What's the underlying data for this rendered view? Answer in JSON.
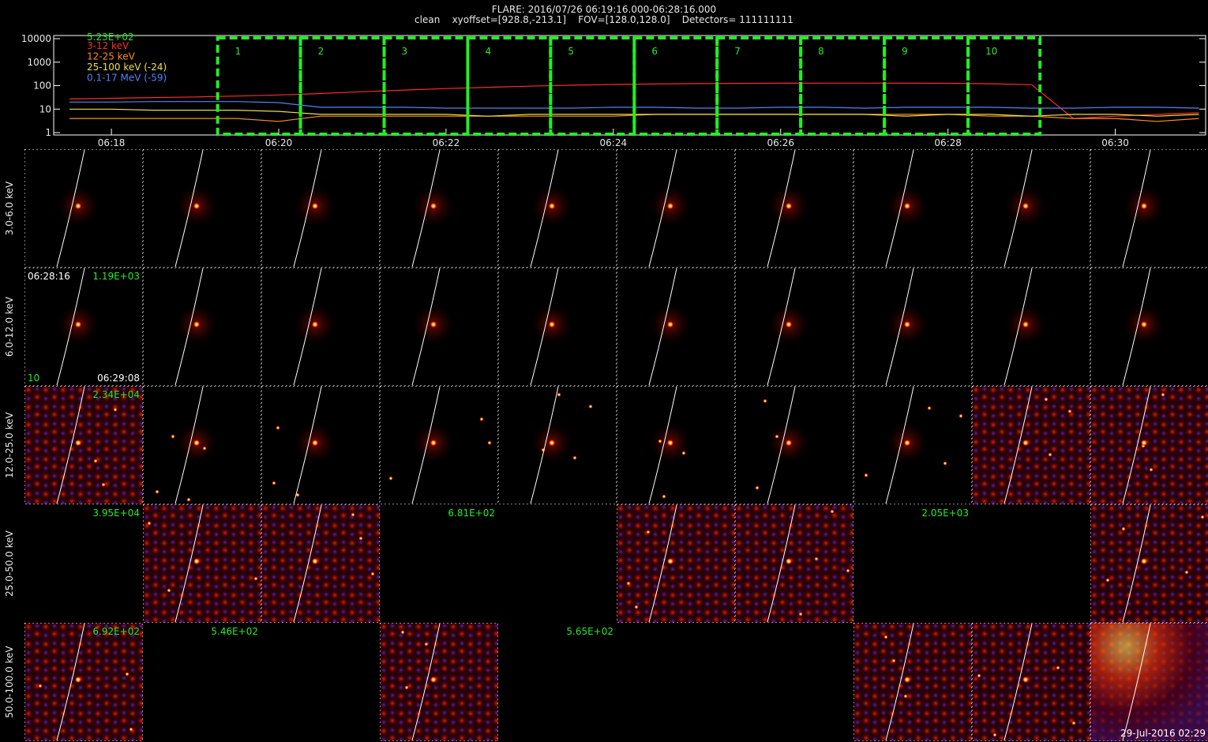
{
  "header": {
    "title": "FLARE: 2016/07/26 06:19:16.000-06:28:16.000",
    "subtitle": "clean    xyoffset=[928.8,-213.1]    FOV=[128.0,128.0]    Detectors= 111111111"
  },
  "chart_data": {
    "type": "line",
    "legend_title": "5.23E+02",
    "log_y": true,
    "x": [
      17.5,
      18,
      18.5,
      19,
      19.5,
      20,
      20.5,
      21,
      21.5,
      22,
      22.5,
      23,
      23.5,
      24,
      24.5,
      25,
      25.5,
      26,
      26.5,
      27,
      27.5,
      28,
      28.5,
      29,
      29.5,
      30,
      30.5,
      31
    ],
    "xlim": [
      17.31,
      31.08
    ],
    "xticks": [
      {
        "value": 18,
        "label": "06:18"
      },
      {
        "value": 20,
        "label": "06:20"
      },
      {
        "value": 22,
        "label": "06:22"
      },
      {
        "value": 24,
        "label": "06:24"
      },
      {
        "value": 26,
        "label": "06:26"
      },
      {
        "value": 28,
        "label": "06:28"
      },
      {
        "value": 30,
        "label": "06:30"
      }
    ],
    "ylim": [
      1,
      10000
    ],
    "yticks": [
      1,
      10,
      100,
      1000,
      10000
    ],
    "series": [
      {
        "name": "3-12 keV",
        "color": "#ff2a2a",
        "values": [
          27,
          29,
          31,
          33,
          36,
          40,
          46,
          55,
          65,
          75,
          85,
          95,
          105,
          112,
          118,
          122,
          125,
          127,
          128,
          128,
          127,
          126,
          120,
          110,
          4,
          5,
          6,
          7
        ]
      },
      {
        "name": "12-25 keV",
        "color": "#ff8c1a",
        "values": [
          4,
          4,
          4,
          4,
          4,
          3,
          5,
          5,
          5,
          5,
          5,
          5,
          5,
          5,
          6,
          6,
          6,
          6,
          6,
          6,
          6,
          6,
          5,
          5,
          4,
          4,
          3,
          4
        ]
      },
      {
        "name": "25-100 keV (-24)",
        "color": "#f0e040",
        "values": [
          10,
          10,
          9,
          9,
          9,
          8,
          6,
          6,
          6,
          6,
          5,
          6,
          6,
          6,
          6,
          6,
          6,
          6,
          6,
          6,
          5,
          6,
          6,
          5,
          6,
          6,
          5,
          6
        ]
      },
      {
        "name": "0.1-17 MeV (-59)",
        "color": "#4a86ff",
        "values": [
          20,
          20,
          21,
          21,
          21,
          19,
          12,
          12,
          12,
          11,
          11,
          11,
          11,
          12,
          12,
          11,
          11,
          12,
          12,
          11,
          12,
          12,
          12,
          11,
          11,
          12,
          12,
          11
        ]
      }
    ],
    "intervals": [
      {
        "label": "1",
        "start": 19.27,
        "end": 20.26
      },
      {
        "label": "2",
        "start": 20.26,
        "end": 21.26
      },
      {
        "label": "3",
        "start": 21.26,
        "end": 22.26
      },
      {
        "label": "4",
        "start": 22.26,
        "end": 23.25
      },
      {
        "label": "5",
        "start": 23.25,
        "end": 24.25
      },
      {
        "label": "6",
        "start": 24.25,
        "end": 25.24
      },
      {
        "label": "7",
        "start": 25.24,
        "end": 26.24
      },
      {
        "label": "8",
        "start": 26.24,
        "end": 27.24
      },
      {
        "label": "9",
        "start": 27.24,
        "end": 28.24
      },
      {
        "label": "10",
        "start": 28.24,
        "end": 29.1
      }
    ],
    "interval_color": "#22ee22"
  },
  "image_grid": {
    "rows": [
      {
        "label": "3.0-6.0 keV",
        "panels": [
          {
            "style": "dot"
          },
          {
            "style": "dot"
          },
          {
            "style": "dot"
          },
          {
            "style": "dot"
          },
          {
            "style": "dot"
          },
          {
            "style": "dot"
          },
          {
            "style": "dot"
          },
          {
            "style": "dot"
          },
          {
            "style": "dot"
          },
          {
            "style": "dot"
          }
        ]
      },
      {
        "label": "6.0-12.0 keV",
        "panels": [
          {
            "style": "dot",
            "labels": {
              "top-left": {
                "text": "06:28:16",
                "color": "#ffffff"
              },
              "top-right": {
                "text": "1.19E+03",
                "color": "#22ee22"
              },
              "bottom-left": {
                "text": "10",
                "color": "#22ee22"
              },
              "bottom-right": {
                "text": "06:29:08",
                "color": "#ffffff"
              }
            }
          },
          {
            "style": "dot"
          },
          {
            "style": "dot"
          },
          {
            "style": "dot"
          },
          {
            "style": "dot"
          },
          {
            "style": "dot"
          },
          {
            "style": "dot"
          },
          {
            "style": "dot"
          },
          {
            "style": "dot"
          },
          {
            "style": "dot"
          }
        ]
      },
      {
        "label": "12.0-25.0 keV",
        "panels": [
          {
            "style": "noise",
            "labels": {
              "top-right": {
                "text": "2.34E+04",
                "color": "#22ee22"
              }
            }
          },
          {
            "style": "speckle"
          },
          {
            "style": "speckle"
          },
          {
            "style": "speckle"
          },
          {
            "style": "speckle"
          },
          {
            "style": "speckle"
          },
          {
            "style": "speckle"
          },
          {
            "style": "speckle"
          },
          {
            "style": "noise"
          },
          {
            "style": "noise"
          }
        ]
      },
      {
        "label": "25.0-50.0 keV",
        "panels": [
          {
            "style": "empty",
            "labels": {
              "top-right": {
                "text": "3.95E+04",
                "color": "#22ee22"
              }
            }
          },
          {
            "style": "noise"
          },
          {
            "style": "noise"
          },
          {
            "style": "empty",
            "labels": {
              "top-right": {
                "text": "6.81E+02",
                "color": "#22ee22"
              }
            }
          },
          {
            "style": "empty"
          },
          {
            "style": "noise"
          },
          {
            "style": "noise"
          },
          {
            "style": "empty",
            "labels": {
              "top-right": {
                "text": "2.05E+03",
                "color": "#22ee22"
              }
            }
          },
          {
            "style": "empty"
          },
          {
            "style": "noise"
          }
        ]
      },
      {
        "label": "50.0-100.0 keV",
        "panels": [
          {
            "style": "noise",
            "labels": {
              "top-right": {
                "text": "6.92E+02",
                "color": "#22ee22"
              }
            }
          },
          {
            "style": "empty",
            "labels": {
              "top-right": {
                "text": "5.46E+02",
                "color": "#22ee22"
              }
            }
          },
          {
            "style": "empty"
          },
          {
            "style": "noise"
          },
          {
            "style": "empty",
            "labels": {
              "top-right": {
                "text": "5.65E+02",
                "color": "#22ee22"
              }
            }
          },
          {
            "style": "empty"
          },
          {
            "style": "empty"
          },
          {
            "style": "noise"
          },
          {
            "style": "noise"
          },
          {
            "style": "bright",
            "labels": {
              "bottom-right": {
                "text": "29-Jul-2016 02:29",
                "color": "#ffffff"
              }
            }
          }
        ]
      }
    ]
  }
}
